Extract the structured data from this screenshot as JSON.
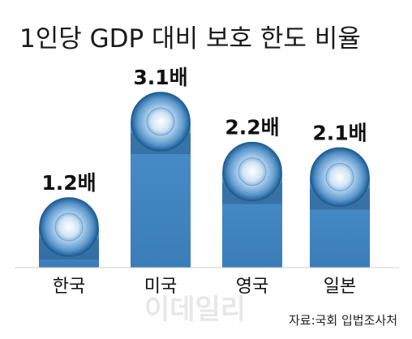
{
  "chart_data": {
    "type": "bar",
    "title": "1인당 GDP 대비 보호 한도 비율",
    "categories": [
      "한국",
      "미국",
      "영국",
      "일본"
    ],
    "values": [
      1.2,
      3.1,
      2.2,
      2.1
    ],
    "value_labels": [
      "1.2배",
      "3.1배",
      "2.2배",
      "2.1배"
    ],
    "source": "자료:국회 입법조사처",
    "watermark": "이데일리",
    "colors": {
      "bar_top": "#4a8fca",
      "bar_bottom": "#3a7db8",
      "bar_shadow": "#2c5f8e",
      "disc_dark": "#1f5e94",
      "disc_light": "#f2f8fd",
      "title": "#1a1a1a",
      "text": "#111111",
      "watermark": "#e7e7e7"
    }
  }
}
